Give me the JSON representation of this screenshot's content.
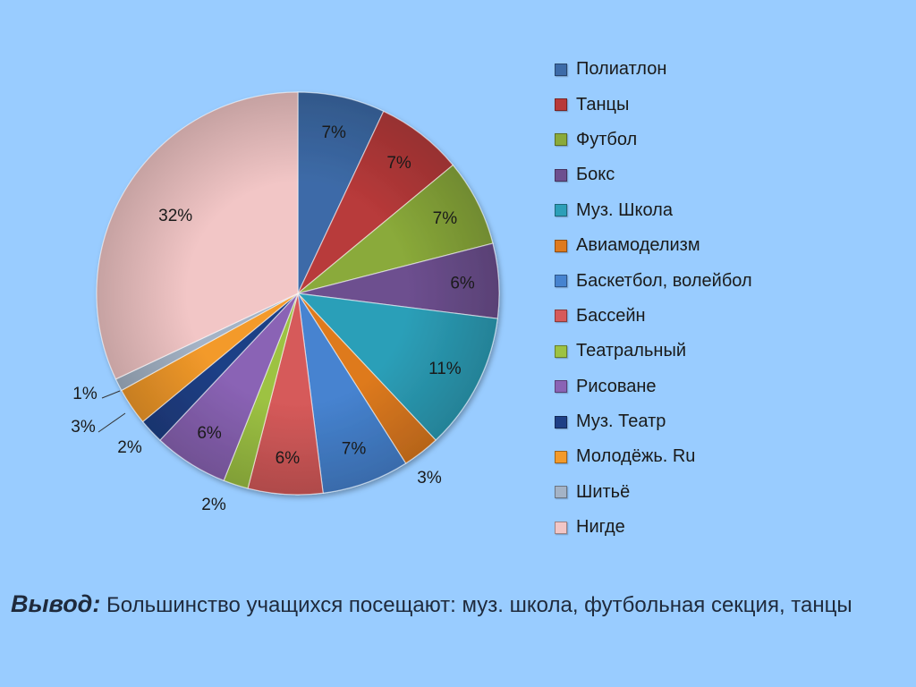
{
  "chart_data": {
    "type": "pie",
    "title": "",
    "slices": [
      {
        "label": "Полиатлон",
        "value": 7,
        "display": "7%",
        "color": "#3d6ba8"
      },
      {
        "label": "Танцы",
        "value": 7,
        "display": "7%",
        "color": "#b83a3a"
      },
      {
        "label": "Футбол",
        "value": 7,
        "display": "7%",
        "color": "#8aaa3a"
      },
      {
        "label": "Бокс",
        "value": 6,
        "display": "6%",
        "color": "#6d4f8f"
      },
      {
        "label": "Муз. Школа",
        "value": 11,
        "display": "11%",
        "color": "#2c9fb8"
      },
      {
        "label": "Авиамоделизм",
        "value": 3,
        "display": "3%",
        "color": "#de7a1e"
      },
      {
        "label": "Баскетбол, волейбол",
        "value": 7,
        "display": "7%",
        "color": "#4683d0"
      },
      {
        "label": "Бассейн",
        "value": 6,
        "display": "6%",
        "color": "#d65a5a"
      },
      {
        "label": "Театральный",
        "value": 2,
        "display": "2%",
        "color": "#9dc243"
      },
      {
        "label": "Рисоване",
        "value": 6,
        "display": "6%",
        "color": "#8a63b5"
      },
      {
        "label": "Муз. Театр",
        "value": 2,
        "display": "2%",
        "color": "#1e3f86"
      },
      {
        "label": "Молодёжь. Ru",
        "value": 3,
        "display": "3%",
        "color": "#f39a2a"
      },
      {
        "label": "Шитьё",
        "value": 1,
        "display": "1%",
        "color": "#a4b3c6"
      },
      {
        "label": "Нигде",
        "value": 32,
        "display": "32%",
        "color": "#f2c6c6"
      }
    ],
    "legend_position": "right"
  },
  "conclusion": {
    "heading": "Вывод:",
    "text": "Большинство учащихся посещают: муз. школа, футбольная секция, танцы"
  }
}
